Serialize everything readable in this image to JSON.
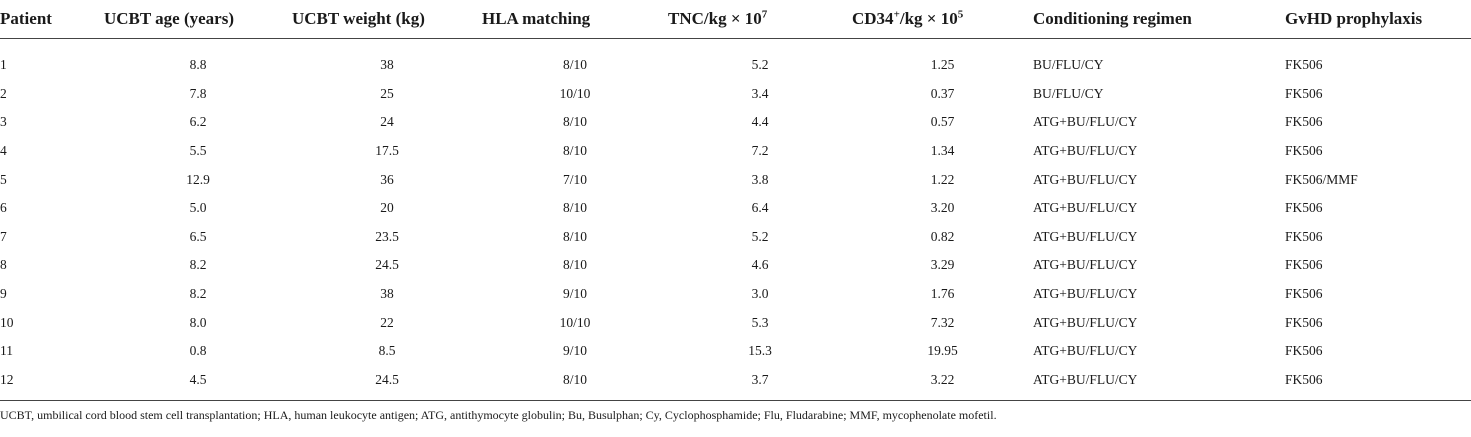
{
  "table": {
    "headers": {
      "patient": "Patient",
      "age": "UCBT age (years)",
      "weight": "UCBT weight (kg)",
      "hla": "HLA matching",
      "tnc_base": "TNC/kg × 10",
      "tnc_exp": "7",
      "cd34_base": "CD34",
      "cd34_plus": "+",
      "cd34_mid": "/kg × 10",
      "cd34_exp": "5",
      "conditioning": "Conditioning regimen",
      "gvhd": "GvHD prophylaxis"
    },
    "rows": [
      {
        "patient": "1",
        "age": "8.8",
        "weight": "38",
        "hla": "8/10",
        "tnc": "5.2",
        "cd34": "1.25",
        "conditioning": "BU/FLU/CY",
        "gvhd": "FK506"
      },
      {
        "patient": "2",
        "age": "7.8",
        "weight": "25",
        "hla": "10/10",
        "tnc": "3.4",
        "cd34": "0.37",
        "conditioning": "BU/FLU/CY",
        "gvhd": "FK506"
      },
      {
        "patient": "3",
        "age": "6.2",
        "weight": "24",
        "hla": "8/10",
        "tnc": "4.4",
        "cd34": "0.57",
        "conditioning": "ATG+BU/FLU/CY",
        "gvhd": "FK506"
      },
      {
        "patient": "4",
        "age": "5.5",
        "weight": "17.5",
        "hla": "8/10",
        "tnc": "7.2",
        "cd34": "1.34",
        "conditioning": "ATG+BU/FLU/CY",
        "gvhd": "FK506"
      },
      {
        "patient": "5",
        "age": "12.9",
        "weight": "36",
        "hla": "7/10",
        "tnc": "3.8",
        "cd34": "1.22",
        "conditioning": "ATG+BU/FLU/CY",
        "gvhd": "FK506/MMF"
      },
      {
        "patient": "6",
        "age": "5.0",
        "weight": "20",
        "hla": "8/10",
        "tnc": "6.4",
        "cd34": "3.20",
        "conditioning": "ATG+BU/FLU/CY",
        "gvhd": "FK506"
      },
      {
        "patient": "7",
        "age": "6.5",
        "weight": "23.5",
        "hla": "8/10",
        "tnc": "5.2",
        "cd34": "0.82",
        "conditioning": "ATG+BU/FLU/CY",
        "gvhd": "FK506"
      },
      {
        "patient": "8",
        "age": "8.2",
        "weight": "24.5",
        "hla": "8/10",
        "tnc": "4.6",
        "cd34": "3.29",
        "conditioning": "ATG+BU/FLU/CY",
        "gvhd": "FK506"
      },
      {
        "patient": "9",
        "age": "8.2",
        "weight": "38",
        "hla": "9/10",
        "tnc": "3.0",
        "cd34": "1.76",
        "conditioning": "ATG+BU/FLU/CY",
        "gvhd": "FK506"
      },
      {
        "patient": "10",
        "age": "8.0",
        "weight": "22",
        "hla": "10/10",
        "tnc": "5.3",
        "cd34": "7.32",
        "conditioning": "ATG+BU/FLU/CY",
        "gvhd": "FK506"
      },
      {
        "patient": "11",
        "age": "0.8",
        "weight": "8.5",
        "hla": "9/10",
        "tnc": "15.3",
        "cd34": "19.95",
        "conditioning": "ATG+BU/FLU/CY",
        "gvhd": "FK506"
      },
      {
        "patient": "12",
        "age": "4.5",
        "weight": "24.5",
        "hla": "8/10",
        "tnc": "3.7",
        "cd34": "3.22",
        "conditioning": "ATG+BU/FLU/CY",
        "gvhd": "FK506"
      }
    ]
  },
  "footnote": "UCBT, umbilical cord blood stem cell transplantation; HLA, human leukocyte antigen; ATG, antithymocyte globulin; Bu, Busulphan; Cy, Cyclophosphamide; Flu, Fludarabine; MMF, mycophenolate mofetil."
}
